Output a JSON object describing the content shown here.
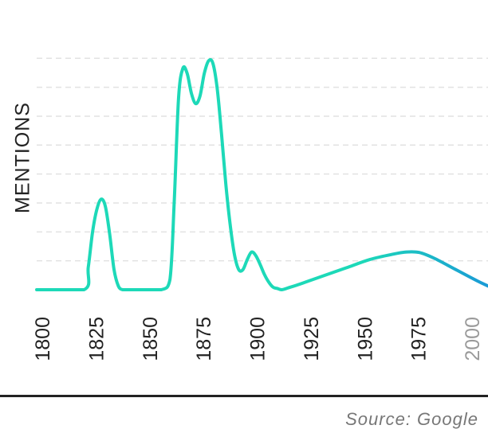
{
  "chart_data": {
    "type": "line",
    "title": "",
    "xlabel": "",
    "ylabel": "MENTIONS",
    "xlim": [
      1800,
      2010
    ],
    "ylim": [
      0,
      10
    ],
    "grid": true,
    "x_ticks": [
      1800,
      1825,
      1850,
      1875,
      1900,
      1925,
      1950,
      1975,
      2000
    ],
    "x_tick_labels": [
      "1800",
      "1825",
      "1850",
      "1875",
      "1900",
      "1925",
      "1950",
      "1975",
      "2000"
    ],
    "muted_ticks": [
      2000
    ],
    "colors": {
      "start": "#1dd9b8",
      "end": "#1a9ad6"
    },
    "series": [
      {
        "x": [
          1800,
          1822,
          1824,
          1826,
          1828,
          1830,
          1832,
          1834,
          1836,
          1838,
          1840,
          1843,
          1846,
          1849,
          1858,
          1862,
          1864,
          1866,
          1868,
          1870,
          1872,
          1874,
          1876,
          1878,
          1880,
          1882,
          1884,
          1886,
          1888,
          1890,
          1892,
          1894,
          1896,
          1898,
          1900,
          1902,
          1904,
          1906,
          1908,
          1910,
          1912,
          1914,
          1918,
          1925,
          1935,
          1945,
          1955,
          1965,
          1972,
          1978,
          1985,
          1995,
          2005,
          2010
        ],
        "y": [
          0,
          0,
          0.9,
          2.3,
          3.2,
          3.6,
          3.3,
          2.2,
          0.8,
          0.15,
          0,
          0,
          0,
          0,
          0,
          0.4,
          3.5,
          7.6,
          8.8,
          8.6,
          7.8,
          7.4,
          7.7,
          8.6,
          9.1,
          9.0,
          8.0,
          6.2,
          4.2,
          2.6,
          1.4,
          0.8,
          0.8,
          1.2,
          1.5,
          1.35,
          1.0,
          0.6,
          0.3,
          0.1,
          0.05,
          0,
          0.1,
          0.3,
          0.6,
          0.9,
          1.2,
          1.4,
          1.5,
          1.48,
          1.25,
          0.8,
          0.35,
          0.15
        ]
      }
    ]
  },
  "source": "Source: Google"
}
